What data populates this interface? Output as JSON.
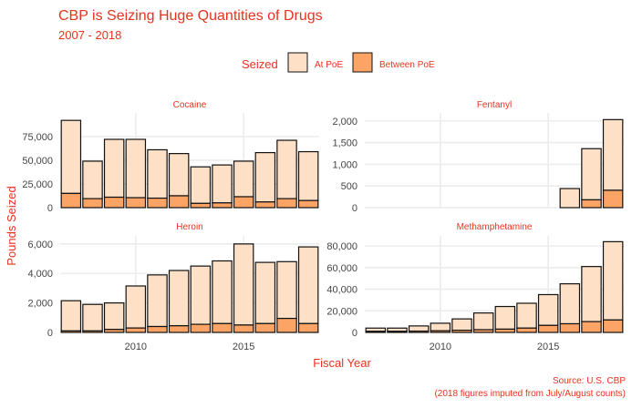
{
  "chart_data": {
    "type": "bar",
    "stacked": true,
    "faceted": true,
    "title": "CBP is Seizing Huge Quantities of Drugs",
    "subtitle": "2007 - 2018",
    "xlabel": "Fiscal Year",
    "ylabel": "Pounds Seized",
    "caption_lines": [
      "Source: U.S. CBP",
      "(2018 figures imputed from July/August counts)"
    ],
    "legend": {
      "title": "Seized",
      "position": "top",
      "entries": [
        {
          "name": "At PoE",
          "color": "#fde0c5"
        },
        {
          "name": "Between PoE",
          "color": "#fca465"
        }
      ]
    },
    "colors": {
      "accent": "#e8321e",
      "at_poe": "#fde0c5",
      "between_poe": "#fca465",
      "bar_stroke": "#111111",
      "grid": "#ececec"
    },
    "x_ticks": [
      2010,
      2015
    ],
    "years": [
      2007,
      2008,
      2009,
      2010,
      2011,
      2012,
      2013,
      2014,
      2015,
      2016,
      2017,
      2018
    ],
    "panels": [
      {
        "name": "Cocaine",
        "ylim": [
          0,
          96000
        ],
        "yticks": [
          0,
          25000,
          50000,
          75000
        ],
        "ytick_labels": [
          "0",
          "25,000",
          "50,000",
          "75,000"
        ],
        "between_poe": [
          15000,
          9500,
          11000,
          10500,
          10000,
          12500,
          4500,
          5000,
          11500,
          6000,
          9500,
          7500
        ],
        "total": [
          92000,
          49000,
          72000,
          72000,
          61000,
          57000,
          43000,
          45000,
          49000,
          58000,
          71000,
          59000
        ]
      },
      {
        "name": "Fentanyl",
        "ylim": [
          0,
          2100
        ],
        "yticks": [
          0,
          500,
          1000,
          1500,
          2000
        ],
        "ytick_labels": [
          "0",
          "500",
          "1,000",
          "1,500",
          "2,000"
        ],
        "between_poe": [
          0,
          0,
          0,
          0,
          0,
          0,
          0,
          0,
          0,
          0,
          180,
          400
        ],
        "total": [
          0,
          0,
          0,
          0,
          0,
          0,
          0,
          0,
          0,
          440,
          1360,
          2030
        ]
      },
      {
        "name": "Heroin",
        "ylim": [
          0,
          6300
        ],
        "yticks": [
          0,
          2000,
          4000,
          6000
        ],
        "ytick_labels": [
          "0",
          "2,000",
          "4,000",
          "6,000"
        ],
        "between_poe": [
          100,
          100,
          200,
          300,
          400,
          450,
          550,
          600,
          500,
          600,
          950,
          600
        ],
        "total": [
          2150,
          1900,
          2000,
          3150,
          3900,
          4200,
          4500,
          4850,
          6000,
          4750,
          4800,
          5800
        ]
      },
      {
        "name": "Methamphetamine",
        "ylim": [
          0,
          86000
        ],
        "yticks": [
          0,
          20000,
          40000,
          60000,
          80000
        ],
        "ytick_labels": [
          "0",
          "20,000",
          "40,000",
          "60,000",
          "80,000"
        ],
        "between_poe": [
          1000,
          1000,
          1200,
          1500,
          2000,
          2500,
          3000,
          4000,
          6500,
          8000,
          10000,
          11500
        ],
        "total": [
          4000,
          4000,
          6000,
          8500,
          12500,
          18000,
          24000,
          27000,
          35000,
          45000,
          61000,
          84000
        ]
      }
    ]
  }
}
